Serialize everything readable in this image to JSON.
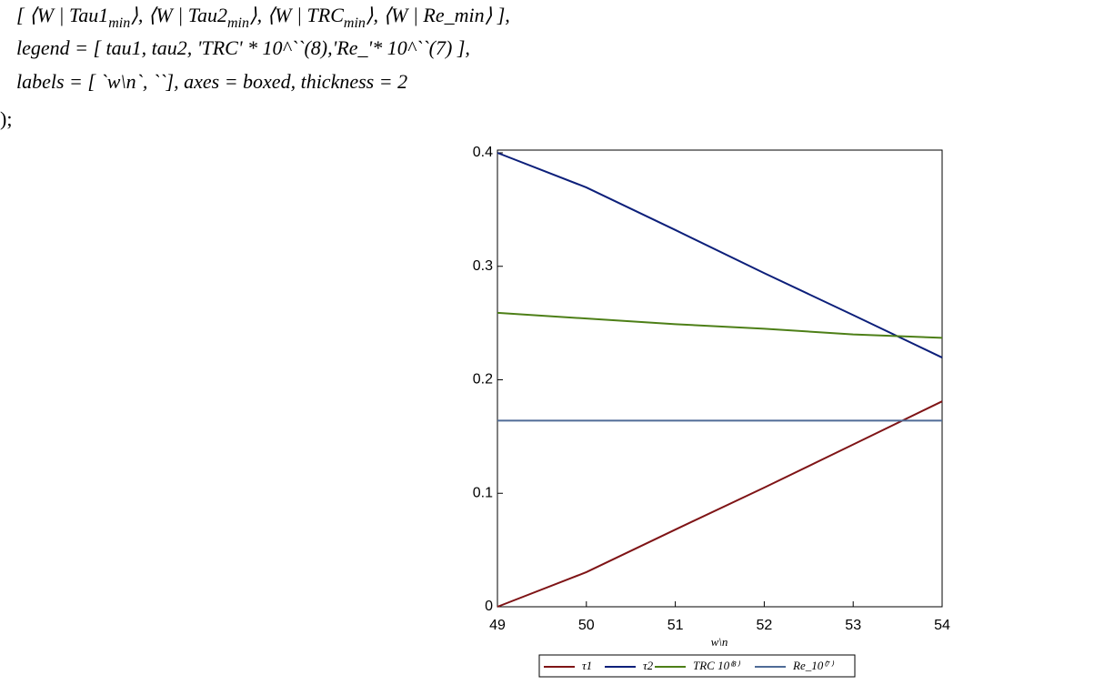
{
  "code": {
    "line1": [
      "[ ⟨W | Tau1",
      "min",
      "⟩, ⟨W | Tau2",
      "min",
      "⟩, ⟨W | TRC",
      "min",
      "⟩, ⟨W | Re_min⟩ ],"
    ],
    "line2": "legend = [ tau1, tau2, 'TRC' * 10^``(8),'Re_'* 10^``(7) ],",
    "line3": "labels = [ `w\\n`, ``], axes = boxed, thickness = 2",
    "line4": ");"
  },
  "chart_data": {
    "type": "line",
    "xlabel": "w\\n",
    "x": [
      49,
      50,
      51,
      52,
      53,
      54
    ],
    "series": [
      {
        "name": "τ1",
        "color": "#7f1416",
        "values": [
          0,
          0.0305,
          0.068,
          0.105,
          0.143,
          0.181
        ]
      },
      {
        "name": "τ2",
        "color": "#0c1f7a",
        "values": [
          0.4,
          0.3695,
          0.332,
          0.294,
          0.257,
          0.2196
        ]
      },
      {
        "name": "TRC 10⁽⁸⁾",
        "color": "#4d7f17",
        "values": [
          0.259,
          0.254,
          0.249,
          0.245,
          0.24,
          0.237
        ]
      },
      {
        "name": "Re_10⁽⁷⁾",
        "color": "#4f6b96",
        "values": [
          0.164,
          0.164,
          0.164,
          0.164,
          0.164,
          0.164
        ]
      }
    ],
    "xlim": [
      49,
      54
    ],
    "xticks": [
      49,
      50,
      51,
      52,
      53,
      54
    ],
    "ylim": [
      0,
      0.4
    ],
    "yticks": [
      0,
      0.1,
      0.2,
      0.3,
      0.4
    ],
    "legend": "bottom"
  }
}
